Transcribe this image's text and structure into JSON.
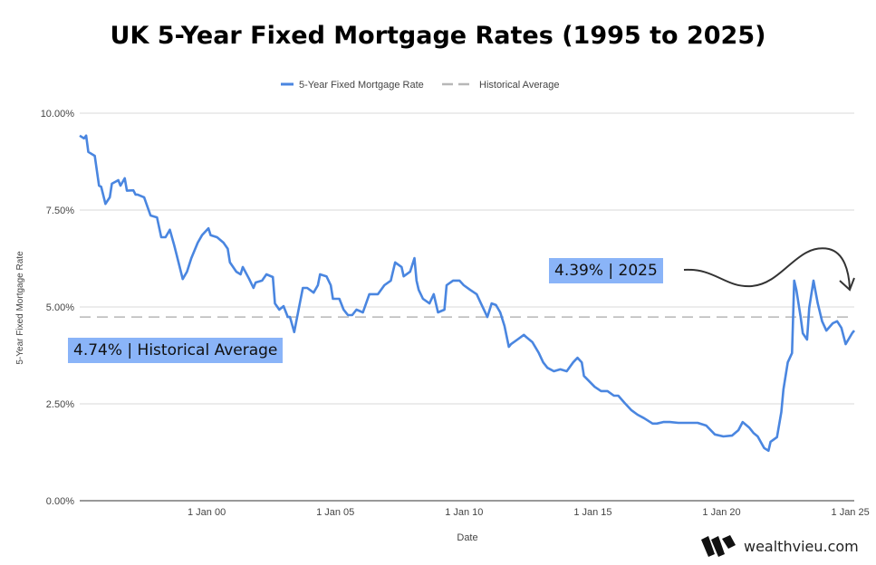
{
  "chart_data": {
    "type": "line",
    "title": "UK 5-Year Fixed Mortgage Rates (1995 to 2025)",
    "xlabel": "Date",
    "ylabel": "5-Year Fixed Mortgage Rate",
    "ylim": [
      0,
      10
    ],
    "xlim": [
      "1995-01",
      "2025-02"
    ],
    "grid": true,
    "legend_placement": "top",
    "y_ticks": [
      "0.00%",
      "2.50%",
      "5.00%",
      "7.50%",
      "10.00%"
    ],
    "y_tick_values": [
      0,
      2.5,
      5,
      7.5,
      10
    ],
    "x_ticks": [
      "1 Jan 00",
      "1 Jan 05",
      "1 Jan 10",
      "1 Jan 15",
      "1 Jan 20",
      "1 Jan 25"
    ],
    "x_tick_dates": [
      "2000-01",
      "2005-01",
      "2010-01",
      "2015-01",
      "2020-01",
      "2025-01"
    ],
    "series": [
      {
        "name": "5-Year Fixed Mortgage Rate",
        "color": "#4a86e0",
        "style": "solid",
        "points": [
          [
            "1995-01",
            9.42
          ],
          [
            "1995-03",
            9.35
          ],
          [
            "1995-04",
            9.42
          ],
          [
            "1995-05",
            9.0
          ],
          [
            "1995-08",
            8.9
          ],
          [
            "1995-10",
            8.13
          ],
          [
            "1995-11",
            8.1
          ],
          [
            "1996-01",
            7.66
          ],
          [
            "1996-03",
            7.83
          ],
          [
            "1996-04",
            8.18
          ],
          [
            "1996-07",
            8.27
          ],
          [
            "1996-08",
            8.13
          ],
          [
            "1996-10",
            8.32
          ],
          [
            "1996-11",
            8.0
          ],
          [
            "1997-02",
            8.01
          ],
          [
            "1997-03",
            7.9
          ],
          [
            "1997-04",
            7.9
          ],
          [
            "1997-07",
            7.83
          ],
          [
            "1997-10",
            7.36
          ],
          [
            "1998-01",
            7.31
          ],
          [
            "1998-03",
            6.8
          ],
          [
            "1998-05",
            6.8
          ],
          [
            "1998-07",
            6.99
          ],
          [
            "1998-09",
            6.6
          ],
          [
            "1998-10",
            6.38
          ],
          [
            "1999-01",
            5.72
          ],
          [
            "1999-03",
            5.91
          ],
          [
            "1999-05",
            6.26
          ],
          [
            "1999-08",
            6.66
          ],
          [
            "1999-10",
            6.85
          ],
          [
            "2000-01",
            7.03
          ],
          [
            "2000-02",
            6.85
          ],
          [
            "2000-05",
            6.8
          ],
          [
            "2000-08",
            6.66
          ],
          [
            "2000-10",
            6.5
          ],
          [
            "2000-11",
            6.15
          ],
          [
            "2001-02",
            5.91
          ],
          [
            "2001-04",
            5.84
          ],
          [
            "2001-05",
            6.03
          ],
          [
            "2001-08",
            5.72
          ],
          [
            "2001-10",
            5.49
          ],
          [
            "2001-11",
            5.63
          ],
          [
            "2002-02",
            5.68
          ],
          [
            "2002-04",
            5.84
          ],
          [
            "2002-07",
            5.77
          ],
          [
            "2002-08",
            5.09
          ],
          [
            "2002-10",
            4.93
          ],
          [
            "2002-12",
            5.02
          ],
          [
            "2003-02",
            4.74
          ],
          [
            "2003-03",
            4.74
          ],
          [
            "2003-05",
            4.35
          ],
          [
            "2003-07",
            4.93
          ],
          [
            "2003-09",
            5.49
          ],
          [
            "2003-11",
            5.49
          ],
          [
            "2004-02",
            5.37
          ],
          [
            "2004-04",
            5.56
          ],
          [
            "2004-05",
            5.84
          ],
          [
            "2004-08",
            5.79
          ],
          [
            "2004-10",
            5.56
          ],
          [
            "2004-11",
            5.21
          ],
          [
            "2005-02",
            5.21
          ],
          [
            "2005-04",
            4.93
          ],
          [
            "2005-06",
            4.79
          ],
          [
            "2005-08",
            4.79
          ],
          [
            "2005-10",
            4.93
          ],
          [
            "2006-01",
            4.86
          ],
          [
            "2006-04",
            5.33
          ],
          [
            "2006-08",
            5.33
          ],
          [
            "2006-11",
            5.56
          ],
          [
            "2007-02",
            5.68
          ],
          [
            "2007-04",
            6.15
          ],
          [
            "2007-07",
            6.03
          ],
          [
            "2007-08",
            5.79
          ],
          [
            "2007-11",
            5.91
          ],
          [
            "2008-01",
            6.26
          ],
          [
            "2008-02",
            5.68
          ],
          [
            "2008-03",
            5.44
          ],
          [
            "2008-05",
            5.21
          ],
          [
            "2008-08",
            5.09
          ],
          [
            "2008-10",
            5.33
          ],
          [
            "2008-12",
            4.86
          ],
          [
            "2009-03",
            4.93
          ],
          [
            "2009-04",
            5.56
          ],
          [
            "2009-07",
            5.68
          ],
          [
            "2009-10",
            5.68
          ],
          [
            "2009-12",
            5.56
          ],
          [
            "2010-03",
            5.44
          ],
          [
            "2010-06",
            5.33
          ],
          [
            "2010-08",
            5.09
          ],
          [
            "2010-11",
            4.74
          ],
          [
            "2011-01",
            5.09
          ],
          [
            "2011-03",
            5.05
          ],
          [
            "2011-05",
            4.86
          ],
          [
            "2011-07",
            4.51
          ],
          [
            "2011-09",
            3.97
          ],
          [
            "2011-10",
            4.04
          ],
          [
            "2012-01",
            4.16
          ],
          [
            "2012-04",
            4.28
          ],
          [
            "2012-05",
            4.23
          ],
          [
            "2012-08",
            4.09
          ],
          [
            "2012-11",
            3.81
          ],
          [
            "2013-01",
            3.57
          ],
          [
            "2013-03",
            3.43
          ],
          [
            "2013-06",
            3.34
          ],
          [
            "2013-09",
            3.39
          ],
          [
            "2013-12",
            3.34
          ],
          [
            "2014-03",
            3.57
          ],
          [
            "2014-05",
            3.69
          ],
          [
            "2014-07",
            3.57
          ],
          [
            "2014-08",
            3.22
          ],
          [
            "2014-10",
            3.11
          ],
          [
            "2015-01",
            2.94
          ],
          [
            "2015-04",
            2.83
          ],
          [
            "2015-07",
            2.83
          ],
          [
            "2015-10",
            2.71
          ],
          [
            "2015-12",
            2.71
          ],
          [
            "2016-03",
            2.52
          ],
          [
            "2016-06",
            2.34
          ],
          [
            "2016-09",
            2.22
          ],
          [
            "2016-12",
            2.13
          ],
          [
            "2017-04",
            1.99
          ],
          [
            "2017-06",
            1.99
          ],
          [
            "2017-09",
            2.03
          ],
          [
            "2017-12",
            2.03
          ],
          [
            "2018-04",
            2.01
          ],
          [
            "2018-08",
            2.01
          ],
          [
            "2019-01",
            2.01
          ],
          [
            "2019-05",
            1.94
          ],
          [
            "2019-09",
            1.71
          ],
          [
            "2020-01",
            1.66
          ],
          [
            "2020-05",
            1.68
          ],
          [
            "2020-08",
            1.82
          ],
          [
            "2020-10",
            2.03
          ],
          [
            "2021-01",
            1.89
          ],
          [
            "2021-03",
            1.75
          ],
          [
            "2021-05",
            1.66
          ],
          [
            "2021-08",
            1.36
          ],
          [
            "2021-10",
            1.29
          ],
          [
            "2021-11",
            1.52
          ],
          [
            "2022-02",
            1.64
          ],
          [
            "2022-04",
            2.29
          ],
          [
            "2022-05",
            2.87
          ],
          [
            "2022-07",
            3.57
          ],
          [
            "2022-09",
            3.81
          ],
          [
            "2022-10",
            5.68
          ],
          [
            "2022-11",
            5.44
          ],
          [
            "2023-01",
            4.74
          ],
          [
            "2023-02",
            4.32
          ],
          [
            "2023-04",
            4.16
          ],
          [
            "2023-05",
            4.98
          ],
          [
            "2023-07",
            5.68
          ],
          [
            "2023-09",
            5.09
          ],
          [
            "2023-11",
            4.63
          ],
          [
            "2024-01",
            4.39
          ],
          [
            "2024-04",
            4.58
          ],
          [
            "2024-06",
            4.63
          ],
          [
            "2024-08",
            4.46
          ],
          [
            "2024-10",
            4.04
          ],
          [
            "2025-01",
            4.32
          ],
          [
            "2025-02",
            4.39
          ]
        ]
      },
      {
        "name": "Historical Average",
        "color": "#b7b7b7",
        "style": "dashed",
        "value": 4.74
      }
    ],
    "annotations": [
      {
        "text": "4.74% | Historical Average",
        "color": "#8ab4f8"
      },
      {
        "text": "4.39% | 2025",
        "color": "#8ab4f8"
      }
    ]
  },
  "branding": {
    "logo_text": "wealthvieu.com",
    "logo_icon": "wealthvieu-w-mark"
  }
}
